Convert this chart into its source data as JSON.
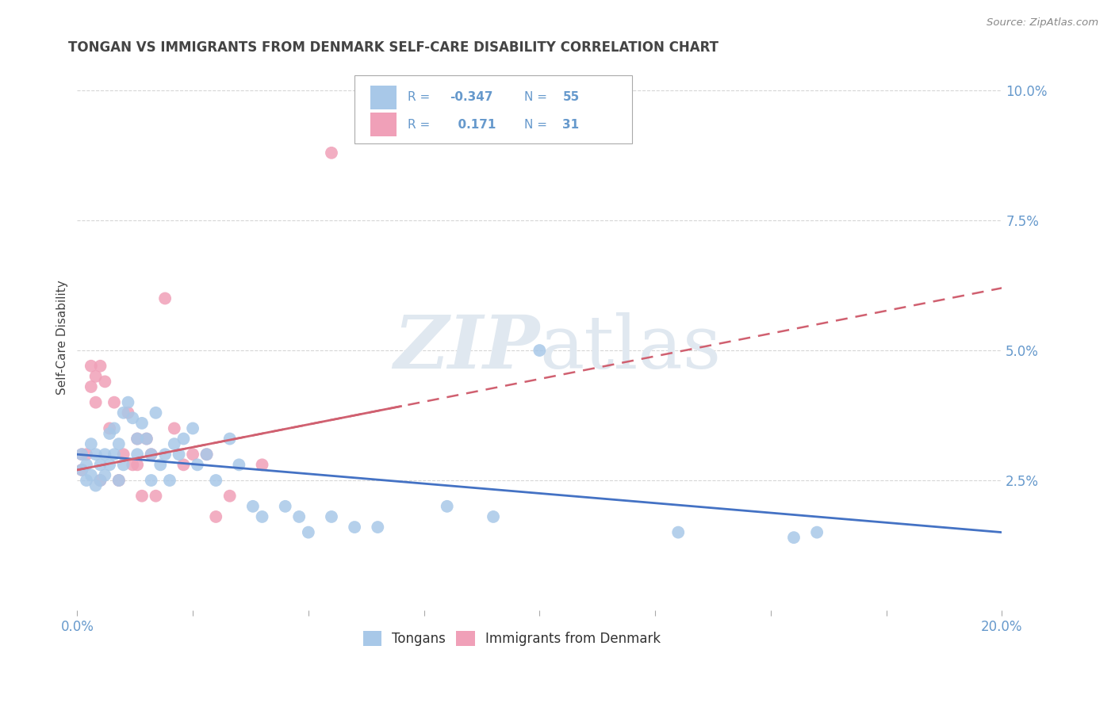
{
  "title": "TONGAN VS IMMIGRANTS FROM DENMARK SELF-CARE DISABILITY CORRELATION CHART",
  "source": "Source: ZipAtlas.com",
  "ylabel": "Self-Care Disability",
  "xlim": [
    0.0,
    0.2
  ],
  "ylim": [
    0.0,
    0.105
  ],
  "yticks_right": [
    0.025,
    0.05,
    0.075,
    0.1
  ],
  "ytick_labels_right": [
    "2.5%",
    "5.0%",
    "7.5%",
    "10.0%"
  ],
  "blue_color": "#a8c8e8",
  "pink_color": "#f0a0b8",
  "blue_line_color": "#4472c4",
  "pink_line_color": "#d06070",
  "title_color": "#444444",
  "axis_label_color": "#6699cc",
  "grid_color": "#cccccc",
  "watermark_color": "#e0e8f0",
  "R_blue": -0.347,
  "N_blue": 55,
  "R_pink": 0.171,
  "N_pink": 31,
  "blue_line_x0": 0.0,
  "blue_line_y0": 0.03,
  "blue_line_x1": 0.2,
  "blue_line_y1": 0.015,
  "pink_line_x0": 0.0,
  "pink_line_y0": 0.027,
  "pink_line_x1": 0.2,
  "pink_line_y1": 0.062,
  "blue_x": [
    0.001,
    0.001,
    0.002,
    0.002,
    0.003,
    0.003,
    0.004,
    0.004,
    0.005,
    0.005,
    0.006,
    0.006,
    0.007,
    0.007,
    0.008,
    0.008,
    0.009,
    0.009,
    0.01,
    0.01,
    0.011,
    0.012,
    0.013,
    0.013,
    0.014,
    0.015,
    0.016,
    0.016,
    0.017,
    0.018,
    0.019,
    0.02,
    0.021,
    0.022,
    0.023,
    0.025,
    0.026,
    0.028,
    0.03,
    0.033,
    0.035,
    0.038,
    0.04,
    0.045,
    0.048,
    0.05,
    0.055,
    0.06,
    0.065,
    0.08,
    0.09,
    0.1,
    0.13,
    0.155,
    0.16
  ],
  "blue_y": [
    0.03,
    0.027,
    0.028,
    0.025,
    0.032,
    0.026,
    0.03,
    0.024,
    0.028,
    0.025,
    0.026,
    0.03,
    0.034,
    0.028,
    0.035,
    0.03,
    0.025,
    0.032,
    0.038,
    0.028,
    0.04,
    0.037,
    0.033,
    0.03,
    0.036,
    0.033,
    0.03,
    0.025,
    0.038,
    0.028,
    0.03,
    0.025,
    0.032,
    0.03,
    0.033,
    0.035,
    0.028,
    0.03,
    0.025,
    0.033,
    0.028,
    0.02,
    0.018,
    0.02,
    0.018,
    0.015,
    0.018,
    0.016,
    0.016,
    0.02,
    0.018,
    0.05,
    0.015,
    0.014,
    0.015
  ],
  "pink_x": [
    0.001,
    0.001,
    0.002,
    0.003,
    0.003,
    0.004,
    0.004,
    0.005,
    0.005,
    0.006,
    0.007,
    0.008,
    0.009,
    0.01,
    0.011,
    0.012,
    0.013,
    0.013,
    0.014,
    0.015,
    0.016,
    0.017,
    0.019,
    0.021,
    0.023,
    0.025,
    0.028,
    0.03,
    0.033,
    0.04,
    0.055
  ],
  "pink_y": [
    0.03,
    0.027,
    0.03,
    0.043,
    0.047,
    0.045,
    0.04,
    0.047,
    0.025,
    0.044,
    0.035,
    0.04,
    0.025,
    0.03,
    0.038,
    0.028,
    0.028,
    0.033,
    0.022,
    0.033,
    0.03,
    0.022,
    0.06,
    0.035,
    0.028,
    0.03,
    0.03,
    0.018,
    0.022,
    0.028,
    0.088
  ]
}
